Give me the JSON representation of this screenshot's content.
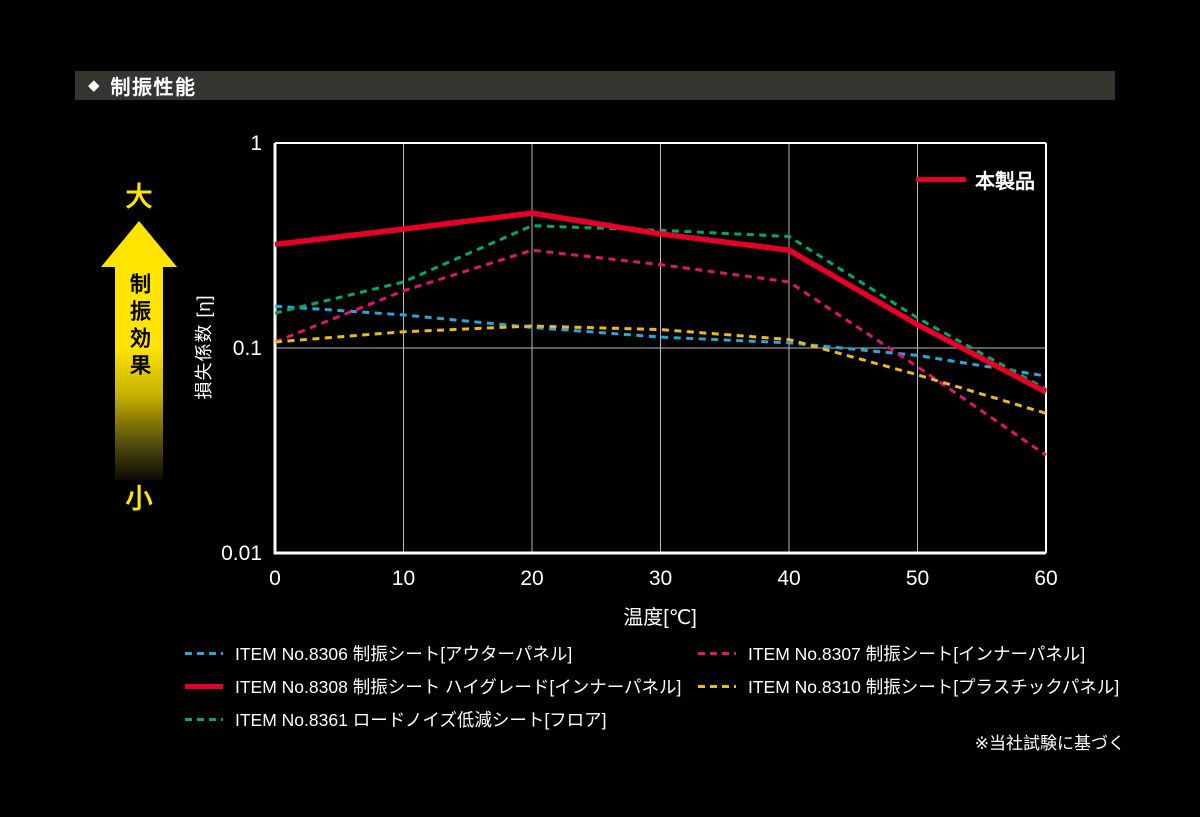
{
  "header": {
    "diamond": "◆",
    "title": "制振性能"
  },
  "arrow": {
    "top_label": "大",
    "body_label": "制振効果",
    "bottom_label": "小"
  },
  "footnote": "※当社試験に基づく",
  "chart_data": {
    "type": "line",
    "title": "",
    "xlabel": "温度[℃]",
    "ylabel": "損失係数 [η]",
    "x_scale": "linear",
    "y_scale": "log",
    "xlim": [
      0,
      60
    ],
    "ylim": [
      0.01,
      1
    ],
    "grid": true,
    "x_ticks": [
      0,
      10,
      20,
      30,
      40,
      50,
      60
    ],
    "y_ticks": [
      {
        "label": "1",
        "value": 1
      },
      {
        "label": "0.1",
        "value": 0.1
      },
      {
        "label": "0.01",
        "value": 0.01
      }
    ],
    "inset_legend_label": "本製品",
    "x": [
      0,
      10,
      20,
      30,
      40,
      50,
      60
    ],
    "series": [
      {
        "name": "ITEM No.8306 制振シート[アウターパネル]",
        "color": "#29a5d8",
        "style": "dashed",
        "values": [
          0.16,
          0.145,
          0.126,
          0.113,
          0.106,
          0.092,
          0.073
        ]
      },
      {
        "name": "ITEM No.8307 制振シート[インナーパネル]",
        "color": "#e0136e",
        "style": "dashed",
        "values": [
          0.107,
          0.19,
          0.3,
          0.255,
          0.21,
          0.081,
          0.03
        ]
      },
      {
        "name": "ITEM No.8308 制振シート ハイグレード[インナーパネル]",
        "color": "#e60027",
        "style": "solid",
        "values": [
          0.32,
          0.38,
          0.455,
          0.36,
          0.3,
          0.13,
          0.061
        ]
      },
      {
        "name": "ITEM No.8310 制振シート[プラスチックパネル]",
        "color": "#edb81e",
        "style": "dashed",
        "values": [
          0.107,
          0.12,
          0.128,
          0.123,
          0.11,
          0.074,
          0.048
        ]
      },
      {
        "name": "ITEM No.8361 ロードノイズ低減シート[フロア]",
        "color": "#00a968",
        "style": "dashed",
        "values": [
          0.148,
          0.21,
          0.395,
          0.375,
          0.35,
          0.14,
          0.063
        ]
      }
    ],
    "legend_layout": {
      "left_column_series": [
        0,
        2,
        4
      ],
      "right_column_series": [
        1,
        3
      ]
    }
  }
}
